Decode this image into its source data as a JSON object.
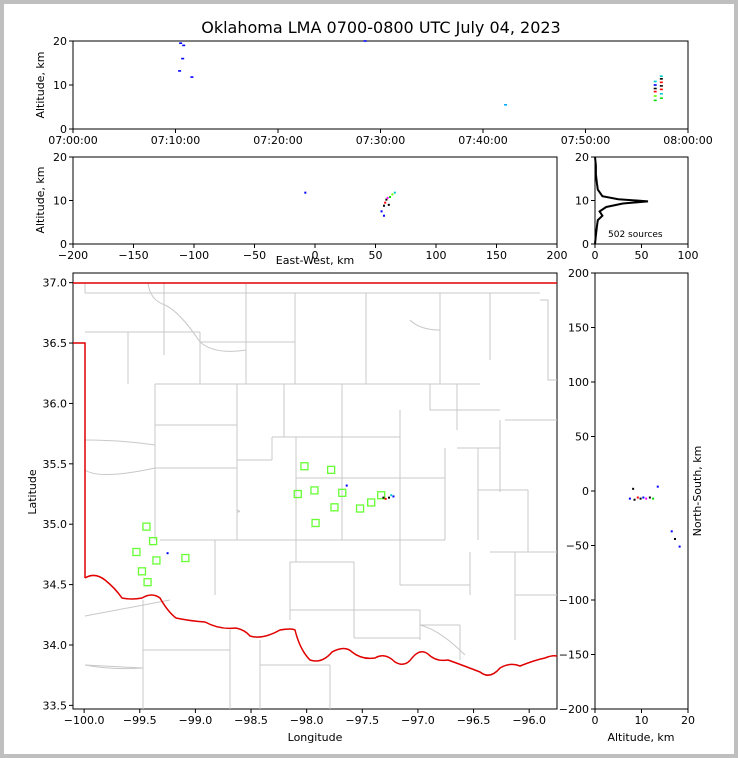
{
  "chart_data": [
    {
      "type": "scatter",
      "panel": "time-altitude",
      "title": "Oklahoma LMA 0700-0800 UTC July 04, 2023",
      "ylabel": "Altitude, km",
      "ylim": [
        0,
        20
      ],
      "yticks": [
        "0",
        "10",
        "20"
      ],
      "xticks": [
        "07:00:00",
        "07:10:00",
        "07:20:00",
        "07:30:00",
        "07:40:00",
        "07:50:00",
        "08:00:00"
      ],
      "xlim_minutes": [
        0,
        60
      ],
      "points": [
        {
          "t": 10.5,
          "alt": 19.5,
          "c": "#0000ff"
        },
        {
          "t": 10.8,
          "alt": 19.0,
          "c": "#0000ff"
        },
        {
          "t": 10.7,
          "alt": 16.0,
          "c": "#0000ff"
        },
        {
          "t": 10.4,
          "alt": 13.2,
          "c": "#0000ff"
        },
        {
          "t": 11.6,
          "alt": 11.8,
          "c": "#0000ff"
        },
        {
          "t": 28.5,
          "alt": 20.0,
          "c": "#0000ff"
        },
        {
          "t": 42.2,
          "alt": 5.5,
          "c": "#00aaff"
        },
        {
          "t": 56.8,
          "alt": 6.5,
          "c": "#00dd00"
        },
        {
          "t": 56.8,
          "alt": 7.5,
          "c": "#66ff00"
        },
        {
          "t": 56.8,
          "alt": 8.5,
          "c": "#ff0000"
        },
        {
          "t": 56.8,
          "alt": 9.2,
          "c": "#000000"
        },
        {
          "t": 56.8,
          "alt": 10.0,
          "c": "#0000ff"
        },
        {
          "t": 56.8,
          "alt": 10.8,
          "c": "#00cccc"
        },
        {
          "t": 57.4,
          "alt": 7.0,
          "c": "#00dd00"
        },
        {
          "t": 57.4,
          "alt": 8.0,
          "c": "#00cccc"
        },
        {
          "t": 57.4,
          "alt": 9.0,
          "c": "#ff0000"
        },
        {
          "t": 57.4,
          "alt": 9.8,
          "c": "#000000"
        },
        {
          "t": 57.4,
          "alt": 10.6,
          "c": "#ff0000"
        },
        {
          "t": 57.4,
          "alt": 11.4,
          "c": "#000000"
        },
        {
          "t": 57.4,
          "alt": 12.0,
          "c": "#00cccc"
        }
      ]
    },
    {
      "type": "scatter",
      "panel": "east-west-altitude",
      "xlabel": "East-West, km",
      "ylabel": "Altitude, km",
      "xlim": [
        -200,
        200
      ],
      "ylim": [
        0,
        20
      ],
      "xticks": [
        "−200",
        "−150",
        "−100",
        "−50",
        "0",
        "50",
        "100",
        "150",
        "200"
      ],
      "yticks": [
        "0",
        "10",
        "20"
      ],
      "points": [
        {
          "x": -8,
          "alt": 11.8,
          "c": "#0000ff"
        },
        {
          "x": 55,
          "alt": 7.5,
          "c": "#0000ff"
        },
        {
          "x": 57,
          "alt": 8.8,
          "c": "#000000"
        },
        {
          "x": 57,
          "alt": 6.5,
          "c": "#0000ff"
        },
        {
          "x": 58,
          "alt": 9.5,
          "c": "#ff0000"
        },
        {
          "x": 59,
          "alt": 10.2,
          "c": "#000000"
        },
        {
          "x": 60,
          "alt": 10.6,
          "c": "#ff00ff"
        },
        {
          "x": 61,
          "alt": 9.0,
          "c": "#000000"
        },
        {
          "x": 62,
          "alt": 10.8,
          "c": "#00dd00"
        },
        {
          "x": 64,
          "alt": 11.4,
          "c": "#66ff00"
        },
        {
          "x": 66,
          "alt": 11.8,
          "c": "#00cccc"
        }
      ]
    },
    {
      "type": "line",
      "panel": "altitude-histogram",
      "annotation": "502 sources",
      "xlim": [
        0,
        100
      ],
      "ylim": [
        0,
        20
      ],
      "xticks": [
        "0",
        "50",
        "100"
      ],
      "yticks": [
        "0",
        "10",
        "20"
      ],
      "profile": [
        {
          "count": 0,
          "alt": 0
        },
        {
          "count": 1,
          "alt": 2
        },
        {
          "count": 2,
          "alt": 4
        },
        {
          "count": 3,
          "alt": 5.5
        },
        {
          "count": 8,
          "alt": 6.5
        },
        {
          "count": 5,
          "alt": 7.5
        },
        {
          "count": 12,
          "alt": 8.5
        },
        {
          "count": 30,
          "alt": 9.3
        },
        {
          "count": 57,
          "alt": 9.8
        },
        {
          "count": 25,
          "alt": 10.3
        },
        {
          "count": 8,
          "alt": 11
        },
        {
          "count": 3,
          "alt": 12.5
        },
        {
          "count": 2,
          "alt": 14
        },
        {
          "count": 1,
          "alt": 16
        },
        {
          "count": 1,
          "alt": 18
        },
        {
          "count": 0,
          "alt": 20
        }
      ]
    },
    {
      "type": "scatter",
      "panel": "plan-view-map",
      "xlabel": "Longitude",
      "ylabel": "Latitude",
      "xlim": [
        -100.1,
        -95.75
      ],
      "ylim": [
        33.47,
        37.08
      ],
      "xticks": [
        "−100.0",
        "−99.5",
        "−99.0",
        "−98.5",
        "−98.0",
        "−97.5",
        "−97.0",
        "−96.5",
        "−96.0"
      ],
      "yticks": [
        "33.5",
        "34.0",
        "34.5",
        "35.0",
        "35.5",
        "36.0",
        "36.5",
        "37.0"
      ],
      "stations": [
        {
          "lon": -98.02,
          "lat": 35.48
        },
        {
          "lon": -97.78,
          "lat": 35.45
        },
        {
          "lon": -98.08,
          "lat": 35.25
        },
        {
          "lon": -97.93,
          "lat": 35.28
        },
        {
          "lon": -97.68,
          "lat": 35.26
        },
        {
          "lon": -97.33,
          "lat": 35.24
        },
        {
          "lon": -97.42,
          "lat": 35.18
        },
        {
          "lon": -97.75,
          "lat": 35.14
        },
        {
          "lon": -97.52,
          "lat": 35.13
        },
        {
          "lon": -97.92,
          "lat": 35.01
        },
        {
          "lon": -99.44,
          "lat": 34.98
        },
        {
          "lon": -99.38,
          "lat": 34.86
        },
        {
          "lon": -99.53,
          "lat": 34.77
        },
        {
          "lon": -99.35,
          "lat": 34.7
        },
        {
          "lon": -99.09,
          "lat": 34.72
        },
        {
          "lon": -99.48,
          "lat": 34.61
        },
        {
          "lon": -99.43,
          "lat": 34.52
        }
      ],
      "sources": [
        {
          "lon": -97.26,
          "lat": 35.22,
          "c": "#000000"
        },
        {
          "lon": -97.22,
          "lat": 35.23,
          "c": "#0000ff"
        },
        {
          "lon": -97.29,
          "lat": 35.21,
          "c": "#ff0000"
        },
        {
          "lon": -97.31,
          "lat": 35.22,
          "c": "#000000"
        },
        {
          "lon": -97.64,
          "lat": 35.32,
          "c": "#0000ff"
        },
        {
          "lon": -99.25,
          "lat": 34.76,
          "c": "#0000ff"
        },
        {
          "lon": -97.24,
          "lat": 35.24,
          "c": "#00cccc"
        }
      ]
    },
    {
      "type": "scatter",
      "panel": "altitude-north-south",
      "xlabel": "Altitude, km",
      "ylabel": "North-South, km",
      "xlim": [
        0,
        20
      ],
      "ylim": [
        -200,
        200
      ],
      "xticks": [
        "0",
        "10",
        "20"
      ],
      "yticks": [
        "−200",
        "−150",
        "−100",
        "−50",
        "0",
        "50",
        "100",
        "150",
        "200"
      ],
      "points": [
        {
          "alt": 7.5,
          "ns": -7,
          "c": "#0000ff"
        },
        {
          "alt": 8.5,
          "ns": -8,
          "c": "#000000"
        },
        {
          "alt": 9.2,
          "ns": -6,
          "c": "#ff0000"
        },
        {
          "alt": 9.8,
          "ns": -7,
          "c": "#000000"
        },
        {
          "alt": 10.4,
          "ns": -6,
          "c": "#0000ff"
        },
        {
          "alt": 11.0,
          "ns": -7,
          "c": "#ff00ff"
        },
        {
          "alt": 11.8,
          "ns": -6,
          "c": "#000000"
        },
        {
          "alt": 12.5,
          "ns": -7,
          "c": "#00dd00"
        },
        {
          "alt": 8.2,
          "ns": 2,
          "c": "#000000"
        },
        {
          "alt": 13.5,
          "ns": 4,
          "c": "#0000ff"
        },
        {
          "alt": 16.5,
          "ns": -37,
          "c": "#0000ff"
        },
        {
          "alt": 17.2,
          "ns": -44,
          "c": "#000000"
        },
        {
          "alt": 18.2,
          "ns": -51,
          "c": "#0000ff"
        }
      ]
    }
  ]
}
